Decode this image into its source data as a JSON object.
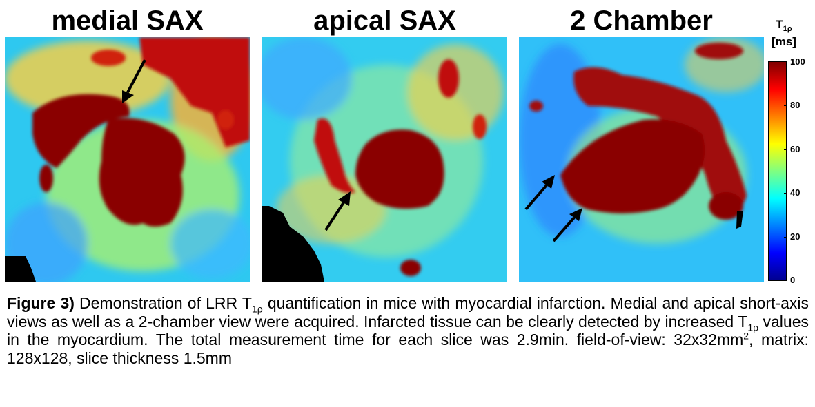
{
  "panels": [
    {
      "title": "medial SAX"
    },
    {
      "title": "apical SAX"
    },
    {
      "title": "2 Chamber"
    }
  ],
  "colorbar": {
    "symbol": "T",
    "symbol_sub": "1ρ",
    "unit": "[ms]",
    "ticks": [
      "100",
      "80",
      "60",
      "40",
      "20",
      "0"
    ],
    "colors": [
      "#00008f",
      "#0000ff",
      "#0080ff",
      "#00ffff",
      "#80ff80",
      "#ffff00",
      "#ff8000",
      "#ff0000",
      "#800000"
    ]
  },
  "caption": {
    "label": "Figure 3)",
    "p1": " Demonstration of LRR T",
    "sub1": "1ρ",
    "p2": " quantification in mice with myocardial infarction. Medial and apical short-axis views as well as a 2-chamber view were acquired. Infarcted tissue can be clearly detected by increased T",
    "sub2": "1ρ",
    "p3": " values in the myocardium. The total measurement time for each slice was 2.9min. field-of-view: 32x32mm",
    "sup1": "2",
    "p4": ", matrix: 128x128, slice thickness 1.5mm"
  }
}
